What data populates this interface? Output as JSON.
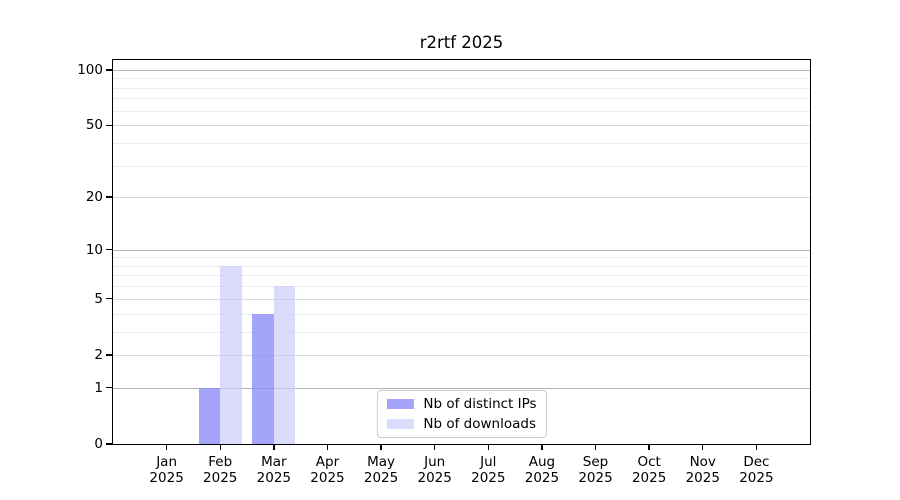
{
  "title": "r2rtf 2025",
  "colors": {
    "grid_major": "#b4b4b4",
    "grid_mid": "#d9d9d9",
    "grid_minor": "#ececec",
    "spine": "#000000",
    "background": "#ffffff",
    "legend_border": "#cccccc"
  },
  "chart_data": {
    "type": "bar",
    "title": "r2rtf 2025",
    "categories": [
      "Jan",
      "Feb",
      "Mar",
      "Apr",
      "May",
      "Jun",
      "Jul",
      "Aug",
      "Sep",
      "Oct",
      "Nov",
      "Dec"
    ],
    "x_tick_year": "2025",
    "series": [
      {
        "name": "Nb of distinct IPs",
        "color": "rgba(141,141,247,0.80)",
        "values": [
          0,
          1,
          4,
          0,
          0,
          0,
          0,
          0,
          0,
          0,
          0,
          0
        ]
      },
      {
        "name": "Nb of downloads",
        "color": "rgba(201,201,249,0.66)",
        "values": [
          0,
          8,
          6,
          0,
          0,
          0,
          0,
          0,
          0,
          0,
          0,
          0
        ]
      }
    ],
    "xlabel": "",
    "ylabel": "",
    "yscale": "log1p",
    "ylim": [
      0,
      113
    ],
    "yticks": [
      0,
      1,
      2,
      5,
      10,
      20,
      50,
      100
    ],
    "yticks_minor": [
      3,
      4,
      6,
      7,
      8,
      9,
      30,
      40,
      60,
      70,
      80,
      90
    ],
    "grid": "horizontal",
    "legend_position": "lower center"
  }
}
